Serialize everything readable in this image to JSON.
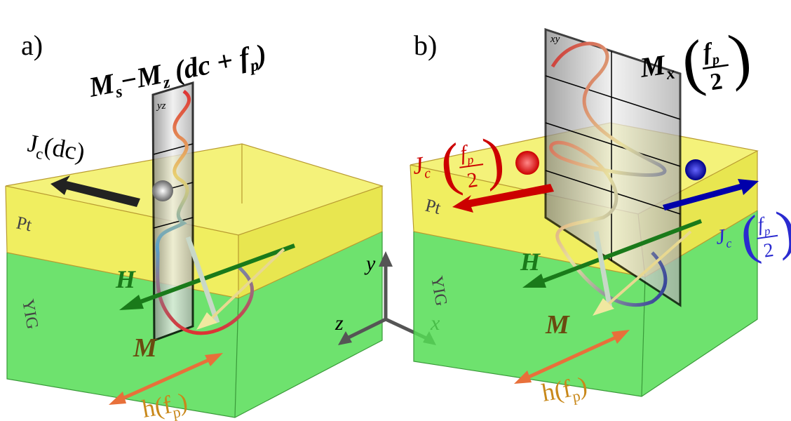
{
  "panels": [
    {
      "label": "a)",
      "plane_title": [
        "M",
        "s",
        "−M",
        "z",
        " (dc + f",
        "p",
        ")"
      ],
      "plane_label": "yz",
      "current": [
        "J",
        "c",
        "(dc)"
      ],
      "layer_top": "Pt",
      "layer_bottom": "YIG",
      "field": "H",
      "magnetization": "M",
      "rf_field": [
        "h",
        "(f",
        "p",
        ")"
      ]
    },
    {
      "label": "b)",
      "plane_title": [
        "M",
        "x",
        "(",
        "f",
        "p",
        "2",
        ")"
      ],
      "plane_label": "xy",
      "current_left": [
        "J",
        "c",
        "(",
        "f",
        "p",
        "2",
        ")"
      ],
      "current_right": [
        "J",
        "c",
        "(",
        "f",
        "p",
        "2",
        ")"
      ],
      "layer_top": "Pt",
      "layer_bottom": "YIG",
      "field": "H",
      "magnetization": "M",
      "rf_field": [
        "h",
        "(f",
        "p",
        ")"
      ]
    }
  ],
  "axes": {
    "y": "y",
    "z": "z",
    "x": "x"
  }
}
